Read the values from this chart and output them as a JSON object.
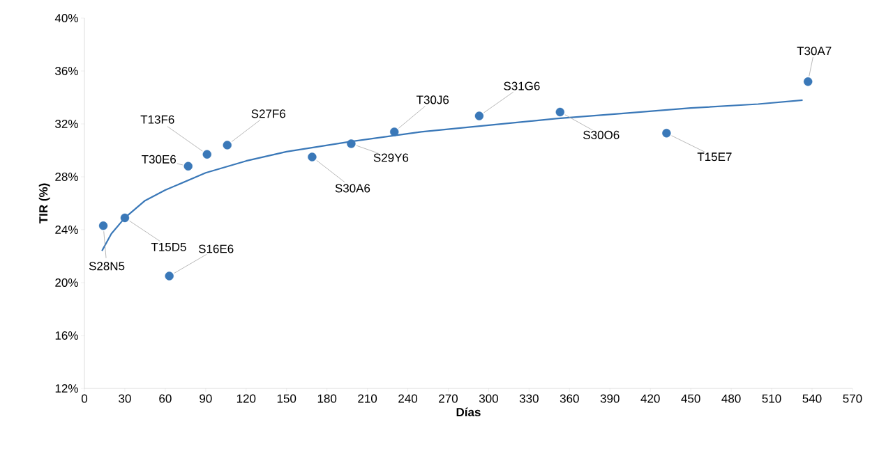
{
  "chart_data": {
    "type": "scatter",
    "xlabel": "Días",
    "ylabel": "TIR (%)",
    "xlim": [
      0,
      570
    ],
    "xticks": [
      0,
      30,
      60,
      90,
      120,
      150,
      180,
      210,
      240,
      270,
      300,
      330,
      360,
      390,
      420,
      450,
      480,
      510,
      540,
      570
    ],
    "ylim": [
      12,
      40
    ],
    "yticks": [
      {
        "value": 12,
        "label": "12%"
      },
      {
        "value": 16,
        "label": "16%"
      },
      {
        "value": 20,
        "label": "20%"
      },
      {
        "value": 24,
        "label": "24%"
      },
      {
        "value": 28,
        "label": "28%"
      },
      {
        "value": 32,
        "label": "32%"
      },
      {
        "value": 36,
        "label": "36%"
      },
      {
        "value": 40,
        "label": "40%"
      }
    ],
    "marker": "circle",
    "series": [
      {
        "color": "#3a78b8",
        "x": [
          14,
          30,
          63,
          77,
          91,
          106,
          169,
          198,
          230,
          293,
          353,
          432,
          537
        ],
        "values": [
          24.3,
          24.9,
          20.5,
          28.8,
          29.7,
          30.4,
          29.5,
          30.5,
          31.4,
          32.6,
          32.9,
          31.3,
          35.2
        ]
      },
      {
        "type": "line",
        "color": "#3a78b8",
        "marker": "none",
        "x": [
          13,
          20,
          30,
          45,
          60,
          90,
          120,
          150,
          200,
          250,
          300,
          350,
          400,
          450,
          500,
          533
        ],
        "values": [
          22.4,
          23.7,
          24.9,
          26.2,
          27.0,
          28.3,
          29.2,
          29.9,
          30.7,
          31.4,
          31.9,
          32.4,
          32.8,
          33.2,
          33.5,
          33.8
        ]
      }
    ],
    "annotations": [
      {
        "text": "S28N5",
        "x": 14,
        "y": 24.3
      },
      {
        "text": "T15D5",
        "x": 30,
        "y": 24.9
      },
      {
        "text": "S16E6",
        "x": 63,
        "y": 20.5
      },
      {
        "text": "T30E6",
        "x": 77,
        "y": 28.8
      },
      {
        "text": "T13F6",
        "x": 91,
        "y": 29.7
      },
      {
        "text": "S27F6",
        "x": 106,
        "y": 30.4
      },
      {
        "text": "S30A6",
        "x": 169,
        "y": 29.5
      },
      {
        "text": "S29Y6",
        "x": 198,
        "y": 30.5
      },
      {
        "text": "T30J6",
        "x": 230,
        "y": 31.4
      },
      {
        "text": "S31G6",
        "x": 293,
        "y": 32.6
      },
      {
        "text": "S30O6",
        "x": 353,
        "y": 32.9
      },
      {
        "text": "T15E7",
        "x": 432,
        "y": 31.3
      },
      {
        "text": "T30A7",
        "x": 537,
        "y": 35.2
      }
    ]
  }
}
